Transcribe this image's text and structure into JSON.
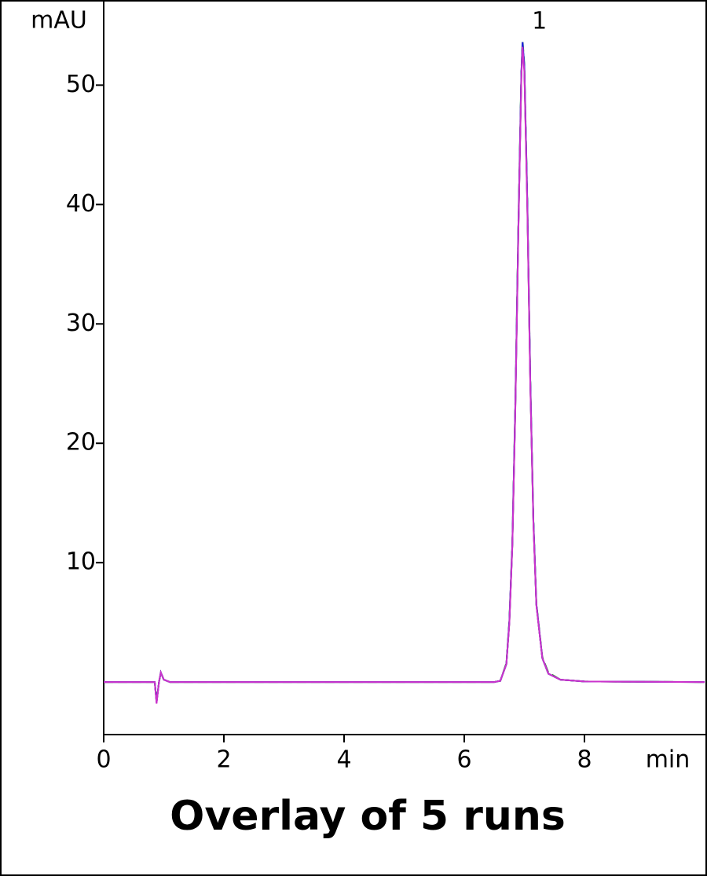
{
  "chart_data": {
    "type": "line",
    "title": "Overlay of 5 runs",
    "x_label": "min",
    "y_label": "mAU",
    "x": [
      0,
      0.8,
      0.85,
      0.88,
      0.92,
      0.95,
      1.0,
      1.1,
      2,
      4,
      6,
      6.5,
      6.6,
      6.7,
      6.75,
      6.8,
      6.85,
      6.9,
      6.95,
      6.97,
      7.0,
      7.05,
      7.1,
      7.15,
      7.2,
      7.3,
      7.4,
      7.6,
      8,
      10
    ],
    "series": [
      {
        "color": "#2e8b2e",
        "values": [
          0,
          0,
          0,
          -1.6,
          0,
          0.8,
          0.2,
          0,
          0,
          0,
          0,
          0,
          0.1,
          1.6,
          5.2,
          11.8,
          23.5,
          38.5,
          51.3,
          53.8,
          51.8,
          40.3,
          25.3,
          13.7,
          6.6,
          2.1,
          0.8,
          0.2,
          0.05,
          0
        ]
      },
      {
        "color": "#e02020",
        "values": [
          0,
          0,
          0,
          -1.7,
          0,
          0.8,
          0.2,
          0,
          0,
          0,
          0,
          0,
          0.1,
          1.5,
          5,
          11.5,
          23,
          38,
          50.9,
          53.3,
          51.3,
          39.8,
          24.9,
          13.4,
          6.5,
          2,
          0.7,
          0.2,
          0.05,
          0
        ]
      },
      {
        "color": "#008080",
        "values": [
          0,
          0,
          0,
          -1.7,
          0,
          0.8,
          0.2,
          0,
          0,
          0,
          0,
          0,
          0.1,
          1.5,
          5,
          11.5,
          23,
          38,
          51,
          53.5,
          51.5,
          40,
          25,
          13.5,
          6.5,
          2,
          0.7,
          0.2,
          0.05,
          0
        ]
      },
      {
        "color": "#2020e0",
        "values": [
          0,
          0,
          0,
          -1.7,
          0,
          0.8,
          0.2,
          0,
          0,
          0,
          0,
          0,
          0.1,
          1.5,
          5.1,
          11.6,
          23.2,
          38.2,
          51.1,
          53.6,
          51.6,
          40.1,
          25.1,
          13.5,
          6.5,
          2,
          0.7,
          0.2,
          0.05,
          0
        ]
      },
      {
        "color": "#cc33cc",
        "values": [
          0,
          0,
          0,
          -1.8,
          0,
          0.8,
          0.2,
          0,
          0,
          0,
          0,
          0,
          0.1,
          1.5,
          4.9,
          11.4,
          22.8,
          37.8,
          50.7,
          53.2,
          51.1,
          39.6,
          24.8,
          13.3,
          6.4,
          2,
          0.7,
          0.2,
          0.05,
          0
        ]
      }
    ],
    "annotations": [
      {
        "text": "1",
        "x": 7.25,
        "y": 55.3
      }
    ],
    "xlim": [
      0,
      10
    ],
    "ylim": [
      -4.4,
      57
    ],
    "xticks": [
      0,
      2,
      4,
      6,
      8
    ],
    "yticks": [
      10,
      20,
      30,
      40,
      50
    ]
  }
}
